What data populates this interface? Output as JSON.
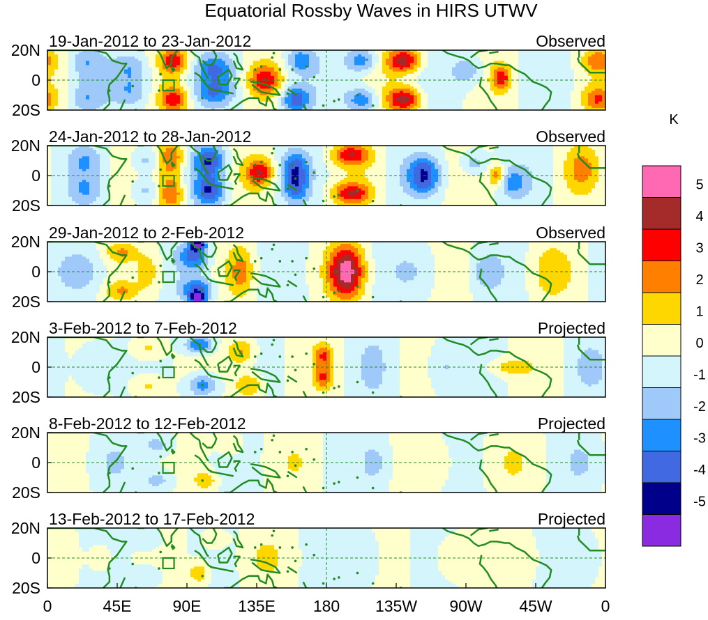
{
  "chart_data": {
    "type": "heatmap",
    "title": "Equatorial Rossby Waves in HIRS UTWV",
    "units": "K",
    "lon_range": [
      0,
      360
    ],
    "lat_range": [
      -20,
      20
    ],
    "x_ticks": [
      {
        "lon": 0,
        "label": "0"
      },
      {
        "lon": 45,
        "label": "45E"
      },
      {
        "lon": 90,
        "label": "90E"
      },
      {
        "lon": 135,
        "label": "135E"
      },
      {
        "lon": 180,
        "label": "180"
      },
      {
        "lon": 225,
        "label": "135W"
      },
      {
        "lon": 270,
        "label": "90W"
      },
      {
        "lon": 315,
        "label": "45W"
      },
      {
        "lon": 360,
        "label": "0"
      }
    ],
    "y_ticks": [
      {
        "lat": 20,
        "label": "20N"
      },
      {
        "lat": 0,
        "label": "0"
      },
      {
        "lat": -20,
        "label": "20S"
      }
    ],
    "colorbar": {
      "levels": [
        -5,
        -4,
        -3,
        -2,
        -1,
        0,
        1,
        2,
        3,
        4,
        5
      ],
      "labels": [
        "-5",
        "-4",
        "-3",
        "-2",
        "-1",
        "0",
        "1",
        "2",
        "3",
        "4",
        "5"
      ],
      "colors": [
        "#8a2be2",
        "#00008b",
        "#4169e1",
        "#1e90ff",
        "#9fc9f8",
        "#d3f5fb",
        "#ffffcc",
        "#ffd700",
        "#ff7f00",
        "#ff0000",
        "#a52a2a",
        "#ff69b4"
      ]
    },
    "panels": [
      {
        "date_range": "19-Jan-2012 to 23-Jan-2012",
        "status": "Observed",
        "base_amp": 0.85,
        "base_k": 5,
        "base_phase": 10,
        "features": [
          {
            "lon": 25,
            "lat": 12,
            "value": -1.5,
            "w": 10,
            "h": 10
          },
          {
            "lon": 25,
            "lat": -12,
            "value": -1.5,
            "w": 10,
            "h": 10
          },
          {
            "lon": 55,
            "lat": 8,
            "value": -2,
            "w": 12,
            "h": 10
          },
          {
            "lon": 55,
            "lat": -8,
            "value": -2,
            "w": 12,
            "h": 10
          },
          {
            "lon": 82,
            "lat": 13,
            "value": 3.4,
            "w": 9,
            "h": 9
          },
          {
            "lon": 82,
            "lat": -13,
            "value": 3.4,
            "w": 9,
            "h": 9
          },
          {
            "lon": 108,
            "lat": 8,
            "value": -2.5,
            "w": 12,
            "h": 9
          },
          {
            "lon": 108,
            "lat": -8,
            "value": -2.5,
            "w": 12,
            "h": 9
          },
          {
            "lon": 140,
            "lat": 0,
            "value": 3.2,
            "w": 10,
            "h": 10
          },
          {
            "lon": 163,
            "lat": 13,
            "value": -2.5,
            "w": 9,
            "h": 9
          },
          {
            "lon": 160,
            "lat": -13,
            "value": -3.8,
            "w": 9,
            "h": 9
          },
          {
            "lon": 203,
            "lat": 13,
            "value": -2.8,
            "w": 10,
            "h": 8
          },
          {
            "lon": 203,
            "lat": -13,
            "value": -3,
            "w": 10,
            "h": 8
          },
          {
            "lon": 230,
            "lat": 13,
            "value": 4.3,
            "w": 11,
            "h": 8
          },
          {
            "lon": 230,
            "lat": -13,
            "value": 4.4,
            "w": 11,
            "h": 8
          },
          {
            "lon": 293,
            "lat": 2,
            "value": 3.2,
            "w": 6,
            "h": 8
          },
          {
            "lon": 272,
            "lat": 6,
            "value": -1.8,
            "w": 10,
            "h": 10
          },
          {
            "lon": 355,
            "lat": 13,
            "value": 2.2,
            "w": 10,
            "h": 8
          },
          {
            "lon": 355,
            "lat": -13,
            "value": 2.6,
            "w": 10,
            "h": 8
          }
        ]
      },
      {
        "date_range": "24-Jan-2012 to 28-Jan-2012",
        "status": "Observed",
        "base_amp": 0.9,
        "base_k": 5,
        "base_phase": 80,
        "features": [
          {
            "lon": 25,
            "lat": 10,
            "value": -1.5,
            "w": 10,
            "h": 10
          },
          {
            "lon": 25,
            "lat": -10,
            "value": -1.5,
            "w": 10,
            "h": 10
          },
          {
            "lon": 63,
            "lat": 10,
            "value": -1.8,
            "w": 10,
            "h": 9
          },
          {
            "lon": 63,
            "lat": -10,
            "value": -1.8,
            "w": 10,
            "h": 9
          },
          {
            "lon": 80,
            "lat": 12,
            "value": 3.3,
            "w": 9,
            "h": 12
          },
          {
            "lon": 80,
            "lat": -12,
            "value": 3.3,
            "w": 9,
            "h": 12
          },
          {
            "lon": 105,
            "lat": 10,
            "value": -3.8,
            "w": 10,
            "h": 10
          },
          {
            "lon": 105,
            "lat": -10,
            "value": -3.8,
            "w": 10,
            "h": 10
          },
          {
            "lon": 137,
            "lat": 2,
            "value": 3.6,
            "w": 8,
            "h": 9
          },
          {
            "lon": 160,
            "lat": 6,
            "value": -2.8,
            "w": 8,
            "h": 10
          },
          {
            "lon": 160,
            "lat": -8,
            "value": -2.8,
            "w": 8,
            "h": 10
          },
          {
            "lon": 196,
            "lat": 14,
            "value": 3.5,
            "w": 12,
            "h": 7
          },
          {
            "lon": 196,
            "lat": -12,
            "value": 3.6,
            "w": 12,
            "h": 7
          },
          {
            "lon": 243,
            "lat": 5,
            "value": -2.6,
            "w": 10,
            "h": 8
          },
          {
            "lon": 243,
            "lat": -5,
            "value": -2.6,
            "w": 10,
            "h": 8
          },
          {
            "lon": 290,
            "lat": 0,
            "value": 2.6,
            "w": 5,
            "h": 7
          },
          {
            "lon": 275,
            "lat": 8,
            "value": -2,
            "w": 9,
            "h": 9
          },
          {
            "lon": 300,
            "lat": -5,
            "value": -2,
            "w": 9,
            "h": 9
          },
          {
            "lon": 345,
            "lat": 5,
            "value": 1.8,
            "w": 10,
            "h": 14
          }
        ]
      },
      {
        "date_range": "29-Jan-2012 to 2-Feb-2012",
        "status": "Observed",
        "base_amp": 0.7,
        "base_k": 5,
        "base_phase": 150,
        "features": [
          {
            "lon": 25,
            "lat": 0,
            "value": -1.5,
            "w": 14,
            "h": 16
          },
          {
            "lon": 48,
            "lat": 13,
            "value": 1.8,
            "w": 10,
            "h": 6
          },
          {
            "lon": 48,
            "lat": -13,
            "value": 1.8,
            "w": 10,
            "h": 6
          },
          {
            "lon": 66,
            "lat": 0,
            "value": 1.7,
            "w": 9,
            "h": 16
          },
          {
            "lon": 95,
            "lat": 10,
            "value": -3.4,
            "w": 10,
            "h": 9
          },
          {
            "lon": 97,
            "lat": 18,
            "value": -4.4,
            "w": 5,
            "h": 4
          },
          {
            "lon": 97,
            "lat": -12,
            "value": -3.6,
            "w": 10,
            "h": 8
          },
          {
            "lon": 97,
            "lat": -18,
            "value": -4.4,
            "w": 5,
            "h": 4
          },
          {
            "lon": 125,
            "lat": 0,
            "value": 2.2,
            "w": 8,
            "h": 16
          },
          {
            "lon": 193,
            "lat": 5,
            "value": 2.9,
            "w": 11,
            "h": 16
          },
          {
            "lon": 193,
            "lat": -5,
            "value": 2.9,
            "w": 11,
            "h": 16
          },
          {
            "lon": 240,
            "lat": 0,
            "value": -0.9,
            "w": 15,
            "h": 16
          },
          {
            "lon": 283,
            "lat": 0,
            "value": -1.5,
            "w": 9,
            "h": 12
          },
          {
            "lon": 325,
            "lat": 0,
            "value": 1.3,
            "w": 12,
            "h": 16
          }
        ]
      },
      {
        "date_range": "3-Feb-2012 to 7-Feb-2012",
        "status": "Projected",
        "base_amp": 0.55,
        "base_k": 5,
        "base_phase": 220,
        "features": [
          {
            "lon": 30,
            "lat": 0,
            "value": -1.2,
            "w": 12,
            "h": 16
          },
          {
            "lon": 65,
            "lat": 12,
            "value": 1.5,
            "w": 10,
            "h": 8
          },
          {
            "lon": 65,
            "lat": -12,
            "value": 1.5,
            "w": 10,
            "h": 8
          },
          {
            "lon": 98,
            "lat": 15,
            "value": -3.5,
            "w": 9,
            "h": 6
          },
          {
            "lon": 100,
            "lat": -12,
            "value": -2.9,
            "w": 9,
            "h": 8
          },
          {
            "lon": 125,
            "lat": 10,
            "value": 2.3,
            "w": 9,
            "h": 9
          },
          {
            "lon": 130,
            "lat": -12,
            "value": 2.4,
            "w": 9,
            "h": 8
          },
          {
            "lon": 178,
            "lat": 8,
            "value": 2.7,
            "w": 6,
            "h": 8
          },
          {
            "lon": 178,
            "lat": -7,
            "value": 2.7,
            "w": 6,
            "h": 8
          },
          {
            "lon": 210,
            "lat": 0,
            "value": -1.4,
            "w": 8,
            "h": 16
          },
          {
            "lon": 255,
            "lat": 0,
            "value": -1.3,
            "w": 10,
            "h": 16
          },
          {
            "lon": 298,
            "lat": 0,
            "value": 1.6,
            "w": 14,
            "h": 6
          },
          {
            "lon": 350,
            "lat": 0,
            "value": -1.2,
            "w": 10,
            "h": 14
          }
        ]
      },
      {
        "date_range": "8-Feb-2012 to 12-Feb-2012",
        "status": "Projected",
        "base_amp": 0.5,
        "base_k": 5,
        "base_phase": 290,
        "features": [
          {
            "lon": 40,
            "lat": 0,
            "value": -0.8,
            "w": 14,
            "h": 16
          },
          {
            "lon": 72,
            "lat": 12,
            "value": -1.4,
            "w": 10,
            "h": 7
          },
          {
            "lon": 72,
            "lat": -12,
            "value": -1.4,
            "w": 10,
            "h": 7
          },
          {
            "lon": 102,
            "lat": -12,
            "value": 1.8,
            "w": 7,
            "h": 6
          },
          {
            "lon": 118,
            "lat": 12,
            "value": 1.3,
            "w": 8,
            "h": 7
          },
          {
            "lon": 160,
            "lat": 0,
            "value": 0.6,
            "w": 15,
            "h": 16
          },
          {
            "lon": 212,
            "lat": 0,
            "value": -1.3,
            "w": 10,
            "h": 16
          },
          {
            "lon": 252,
            "lat": 0,
            "value": 0.6,
            "w": 14,
            "h": 16
          },
          {
            "lon": 300,
            "lat": 0,
            "value": 0.7,
            "w": 14,
            "h": 16
          },
          {
            "lon": 345,
            "lat": 0,
            "value": -0.8,
            "w": 12,
            "h": 16
          }
        ]
      },
      {
        "date_range": "13-Feb-2012 to 17-Feb-2012",
        "status": "Projected",
        "base_amp": 0.5,
        "base_k": 5,
        "base_phase": 0,
        "features": [
          {
            "lon": 35,
            "lat": 0,
            "value": 0.6,
            "w": 12,
            "h": 16
          },
          {
            "lon": 65,
            "lat": 12,
            "value": -1.3,
            "w": 9,
            "h": 7
          },
          {
            "lon": 65,
            "lat": -12,
            "value": -1.2,
            "w": 9,
            "h": 7
          },
          {
            "lon": 98,
            "lat": -10,
            "value": 1.9,
            "w": 7,
            "h": 8
          },
          {
            "lon": 108,
            "lat": 12,
            "value": 1.2,
            "w": 8,
            "h": 7
          },
          {
            "lon": 140,
            "lat": 0,
            "value": 0.8,
            "w": 14,
            "h": 16
          },
          {
            "lon": 205,
            "lat": 0,
            "value": -1.2,
            "w": 10,
            "h": 16
          },
          {
            "lon": 258,
            "lat": 0,
            "value": 0.7,
            "w": 12,
            "h": 16
          },
          {
            "lon": 305,
            "lat": 0,
            "value": 0.8,
            "w": 14,
            "h": 16
          },
          {
            "lon": 350,
            "lat": 0,
            "value": -0.8,
            "w": 10,
            "h": 16
          }
        ]
      }
    ]
  }
}
